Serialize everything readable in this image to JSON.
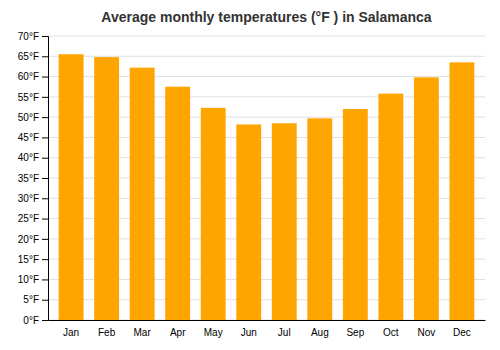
{
  "chart_data": {
    "type": "bar",
    "title": "Average monthly temperatures (°F ) in Salamanca",
    "categories": [
      "Jan",
      "Feb",
      "Mar",
      "Apr",
      "May",
      "Jun",
      "Jul",
      "Aug",
      "Sep",
      "Oct",
      "Nov",
      "Dec"
    ],
    "values": [
      65.5,
      64.8,
      62.2,
      57.5,
      52.3,
      48.2,
      48.5,
      49.7,
      52.0,
      55.8,
      59.8,
      63.5
    ],
    "color": "#FFA500",
    "ylim": [
      0,
      70
    ],
    "yticks": [
      {
        "value": 0,
        "label": "0°F"
      },
      {
        "value": 5,
        "label": "5°F"
      },
      {
        "value": 10,
        "label": "10°F"
      },
      {
        "value": 15,
        "label": "15°F"
      },
      {
        "value": 20,
        "label": "20°F"
      },
      {
        "value": 25,
        "label": "25°F"
      },
      {
        "value": 30,
        "label": "30°F"
      },
      {
        "value": 35,
        "label": "35°F"
      },
      {
        "value": 40,
        "label": "40°F"
      },
      {
        "value": 45,
        "label": "45°F"
      },
      {
        "value": 50,
        "label": "50°F"
      },
      {
        "value": 55,
        "label": "55°F"
      },
      {
        "value": 60,
        "label": "60°F"
      },
      {
        "value": 65,
        "label": "65°F"
      },
      {
        "value": 70,
        "label": "70°F"
      }
    ],
    "grid": true
  }
}
